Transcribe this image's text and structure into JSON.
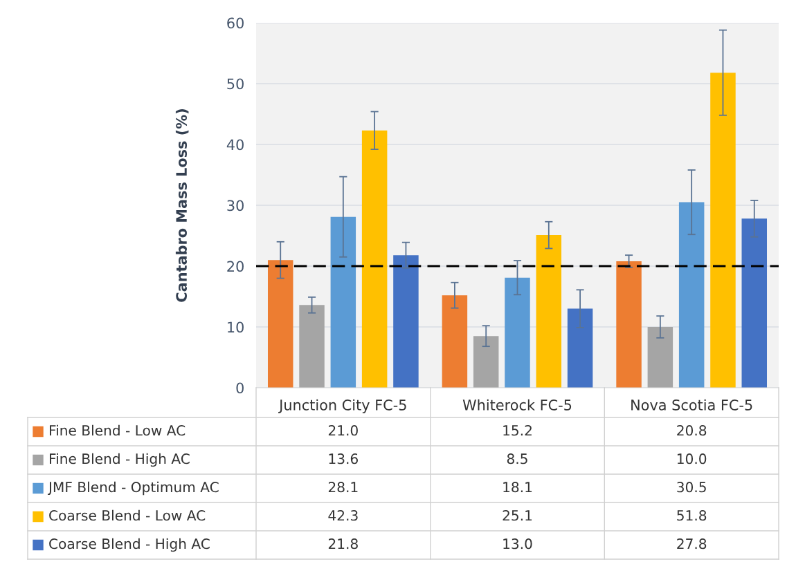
{
  "chart_data": {
    "type": "bar",
    "ylabel": "Cantabro Mass Loss (%)",
    "categories": [
      "Junction City FC-5",
      "Whiterock FC-5",
      "Nova Scotia FC-5"
    ],
    "series": [
      {
        "name": "Fine Blend - Low AC",
        "color": "#ed7d31",
        "values": [
          21.0,
          15.2,
          20.8
        ],
        "value_labels": [
          "21.0",
          "15.2",
          "20.8"
        ],
        "errors": [
          3.0,
          2.1,
          1.0
        ]
      },
      {
        "name": "Fine Blend - High AC",
        "color": "#a5a5a5",
        "values": [
          13.6,
          8.5,
          10.0
        ],
        "value_labels": [
          "13.6",
          "8.5",
          "10.0"
        ],
        "errors": [
          1.3,
          1.7,
          1.8
        ]
      },
      {
        "name": "JMF Blend - Optimum AC",
        "color": "#5b9bd5",
        "values": [
          28.1,
          18.1,
          30.5
        ],
        "value_labels": [
          "28.1",
          "18.1",
          "30.5"
        ],
        "errors": [
          6.6,
          2.8,
          5.3
        ]
      },
      {
        "name": "Coarse Blend - Low AC",
        "color": "#ffc000",
        "values": [
          42.3,
          25.1,
          51.8
        ],
        "value_labels": [
          "42.3",
          "25.1",
          "51.8"
        ],
        "errors": [
          3.1,
          2.2,
          7.0
        ]
      },
      {
        "name": "Coarse Blend - High AC",
        "color": "#4472c4",
        "values": [
          21.8,
          13.0,
          27.8
        ],
        "value_labels": [
          "21.8",
          "13.0",
          "27.8"
        ],
        "errors": [
          2.1,
          3.1,
          3.0
        ]
      }
    ],
    "ylim": [
      0,
      60
    ],
    "yticks": [
      0,
      10,
      20,
      30,
      40,
      50,
      60
    ],
    "grid": "y",
    "ref_lines": [
      {
        "axis": "y",
        "value": 20,
        "color": "#000000",
        "line_style": "dashed"
      }
    ],
    "legend": "bottom"
  }
}
